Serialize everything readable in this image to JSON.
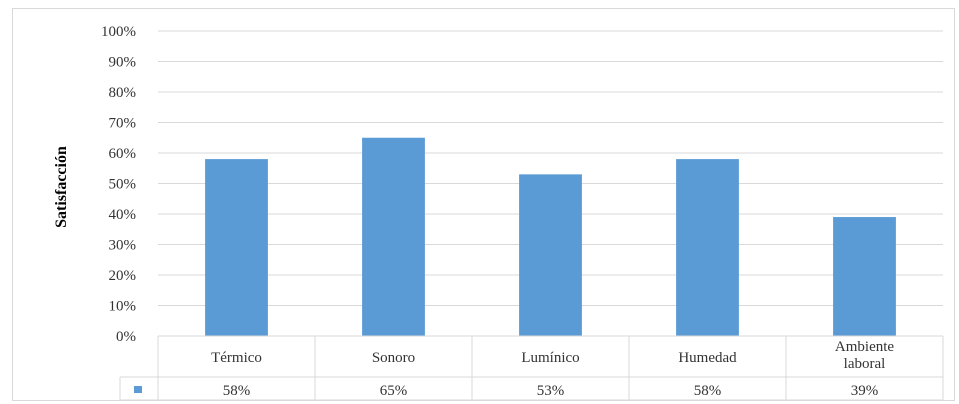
{
  "chart_data": {
    "type": "bar",
    "title": "",
    "xlabel": "",
    "ylabel": "Satisfacción",
    "ylim": [
      0,
      100
    ],
    "y_ticks": [
      "0%",
      "10%",
      "20%",
      "30%",
      "40%",
      "50%",
      "60%",
      "70%",
      "80%",
      "90%",
      "100%"
    ],
    "categories": [
      "Térmico",
      "Sonoro",
      "Lumínico",
      "Humedad",
      "Ambiente laboral"
    ],
    "values": [
      58,
      65,
      53,
      58,
      39
    ],
    "value_labels": [
      "58%",
      "65%",
      "53%",
      "58%",
      "39%"
    ],
    "grid": true,
    "legend_placement": "bottom-left (data table key)",
    "bar_color": "#5b9bd5",
    "grid_color": "#d9d9d9"
  }
}
